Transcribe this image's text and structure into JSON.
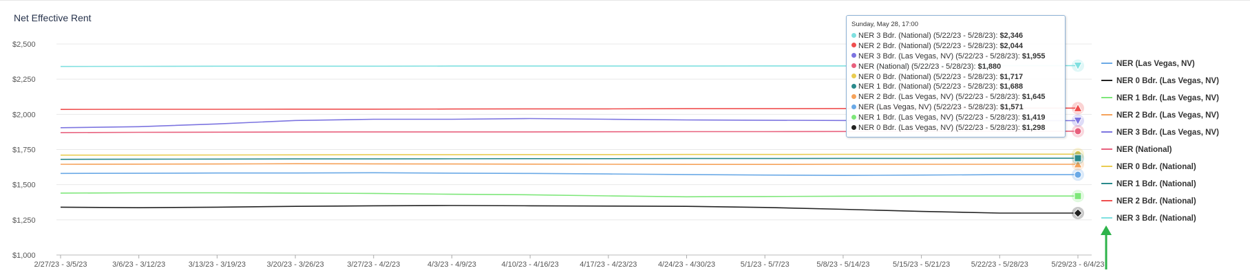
{
  "chart_data": {
    "type": "line",
    "title": "Net Effective Rent",
    "xlabel": "",
    "ylabel": "",
    "ylim": [
      1000,
      2500
    ],
    "y_ticks": [
      "$2,500",
      "$2,250",
      "$2,000",
      "$1,750",
      "$1,500",
      "$1,250",
      "$1,000"
    ],
    "y_tick_values": [
      2500,
      2250,
      2000,
      1750,
      1500,
      1250,
      1000
    ],
    "grid": true,
    "legend_position": "right",
    "categories": [
      "2/27/23 - 3/5/23",
      "3/6/23 - 3/12/23",
      "3/13/23 - 3/19/23",
      "3/20/23 - 3/26/23",
      "3/27/23 - 4/2/23",
      "4/3/23 - 4/9/23",
      "4/10/23 - 4/16/23",
      "4/17/23 - 4/23/23",
      "4/24/23 - 4/30/23",
      "5/1/23 - 5/7/23",
      "5/8/23 - 5/14/23",
      "5/15/23 - 5/21/23",
      "5/22/23 - 5/28/23",
      "5/29/23 - 6/4/23"
    ],
    "series": [
      {
        "name": "NER (Las Vegas, NV)",
        "color": "#6aa9e6",
        "marker": "circle",
        "values": [
          1580,
          1581,
          1583,
          1583,
          1585,
          1582,
          1580,
          1576,
          1572,
          1568,
          1566,
          1568,
          1571,
          1571
        ]
      },
      {
        "name": "NER 0 Bdr. (Las Vegas, NV)",
        "color": "#222222",
        "marker": "diamond",
        "values": [
          1340,
          1336,
          1340,
          1346,
          1350,
          1352,
          1350,
          1348,
          1346,
          1338,
          1325,
          1310,
          1298,
          1298
        ]
      },
      {
        "name": "NER 1 Bdr. (Las Vegas, NV)",
        "color": "#7ee77a",
        "marker": "square",
        "values": [
          1440,
          1442,
          1442,
          1440,
          1438,
          1432,
          1428,
          1420,
          1414,
          1416,
          1418,
          1419,
          1419,
          1419
        ]
      },
      {
        "name": "NER 2 Bdr. (Las Vegas, NV)",
        "color": "#f5a25a",
        "marker": "triangle",
        "values": [
          1645,
          1646,
          1647,
          1649,
          1648,
          1647,
          1646,
          1645,
          1644,
          1644,
          1645,
          1645,
          1645,
          1645
        ]
      },
      {
        "name": "NER 3 Bdr. (Las Vegas, NV)",
        "color": "#7c74e0",
        "marker": "triangle-down",
        "values": [
          1905,
          1912,
          1932,
          1956,
          1965,
          1965,
          1970,
          1965,
          1960,
          1958,
          1956,
          1955,
          1955,
          1955
        ]
      },
      {
        "name": "NER (National)",
        "color": "#e8607d",
        "marker": "circle",
        "values": [
          1870,
          1872,
          1873,
          1874,
          1875,
          1875,
          1875,
          1876,
          1877,
          1877,
          1878,
          1879,
          1880,
          1880
        ]
      },
      {
        "name": "NER 0 Bdr. (National)",
        "color": "#e9cc50",
        "marker": "circle",
        "values": [
          1710,
          1710,
          1711,
          1712,
          1713,
          1713,
          1714,
          1714,
          1715,
          1715,
          1716,
          1716,
          1717,
          1717
        ]
      },
      {
        "name": "NER 1 Bdr. (National)",
        "color": "#2a8a8c",
        "marker": "square",
        "values": [
          1680,
          1681,
          1682,
          1683,
          1683,
          1684,
          1685,
          1685,
          1686,
          1686,
          1687,
          1687,
          1688,
          1688
        ]
      },
      {
        "name": "NER 2 Bdr. (National)",
        "color": "#ef4e4e",
        "marker": "triangle",
        "values": [
          2035,
          2036,
          2036,
          2037,
          2037,
          2038,
          2039,
          2039,
          2040,
          2040,
          2041,
          2043,
          2044,
          2044
        ]
      },
      {
        "name": "NER 3 Bdr. (National)",
        "color": "#7fe0e0",
        "marker": "triangle-down",
        "values": [
          2340,
          2341,
          2342,
          2342,
          2342,
          2343,
          2343,
          2343,
          2343,
          2344,
          2344,
          2345,
          2346,
          2346
        ]
      }
    ]
  },
  "tooltip": {
    "header": "Sunday, May 28, 17:00",
    "rows": [
      {
        "label": "NER 3 Bdr. (National) (5/22/23 - 5/28/23):",
        "value": "$2,346",
        "color": "#7fe0e0"
      },
      {
        "label": "NER 2 Bdr. (National) (5/22/23 - 5/28/23):",
        "value": "$2,044",
        "color": "#ef4e4e"
      },
      {
        "label": "NER 3 Bdr. (Las Vegas, NV) (5/22/23 - 5/28/23):",
        "value": "$1,955",
        "color": "#7c74e0"
      },
      {
        "label": "NER (National) (5/22/23 - 5/28/23):",
        "value": "$1,880",
        "color": "#e8607d"
      },
      {
        "label": "NER 0 Bdr. (National) (5/22/23 - 5/28/23):",
        "value": "$1,717",
        "color": "#e9cc50"
      },
      {
        "label": "NER 1 Bdr. (National) (5/22/23 - 5/28/23):",
        "value": "$1,688",
        "color": "#2a8a8c"
      },
      {
        "label": "NER 2 Bdr. (Las Vegas, NV) (5/22/23 - 5/28/23):",
        "value": "$1,645",
        "color": "#f5a25a"
      },
      {
        "label": "NER (Las Vegas, NV) (5/22/23 - 5/28/23):",
        "value": "$1,571",
        "color": "#6aa9e6"
      },
      {
        "label": "NER 1 Bdr. (Las Vegas, NV) (5/22/23 - 5/28/23):",
        "value": "$1,419",
        "color": "#7ee77a"
      },
      {
        "label": "NER 0 Bdr. (Las Vegas, NV) (5/22/23 - 5/28/23):",
        "value": "$1,298",
        "color": "#222222"
      }
    ]
  },
  "annotation": {
    "arrow_color": "#2db34a",
    "arrow_icon": "up-arrow-icon"
  }
}
